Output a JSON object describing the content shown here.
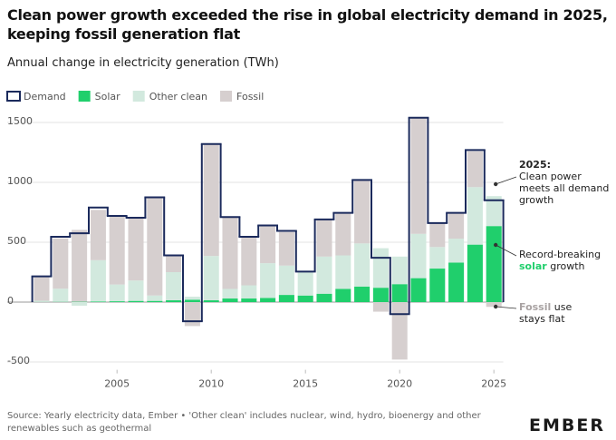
{
  "chart_data": {
    "type": "bar",
    "title": "Clean power growth exceeded the rise in global electricity demand in 2025, keeping fossil generation flat",
    "subtitle": "Annual change in electricity generation (TWh)",
    "x": [
      2001,
      2002,
      2003,
      2004,
      2005,
      2006,
      2007,
      2008,
      2009,
      2010,
      2011,
      2012,
      2013,
      2014,
      2015,
      2016,
      2017,
      2018,
      2019,
      2020,
      2021,
      2022,
      2023,
      2024,
      2025
    ],
    "xlim": [
      2000.5,
      2025.5
    ],
    "xticks": [
      2005,
      2010,
      2015,
      2020,
      2025
    ],
    "ylim": [
      -550,
      1550
    ],
    "yticks": [
      -500,
      0,
      500,
      1000,
      1500
    ],
    "grid": true,
    "series": [
      {
        "name": "Demand",
        "color": "#1b2a5c",
        "type": "step",
        "values": [
          215,
          545,
          575,
          790,
          720,
          705,
          875,
          390,
          -160,
          1320,
          710,
          545,
          640,
          595,
          255,
          690,
          745,
          1020,
          370,
          -100,
          1540,
          660,
          745,
          1270,
          850
        ]
      },
      {
        "name": "Solar",
        "color": "#20cf6c",
        "type": "stacked_bar",
        "values": [
          1,
          2,
          3,
          5,
          7,
          10,
          10,
          15,
          20,
          15,
          30,
          30,
          35,
          60,
          55,
          70,
          110,
          130,
          120,
          150,
          200,
          280,
          330,
          480,
          635
        ]
      },
      {
        "name": "Other clean",
        "color": "#d2e9de",
        "type": "stacked_bar",
        "values": [
          10,
          110,
          -30,
          345,
          140,
          170,
          45,
          235,
          25,
          370,
          80,
          110,
          290,
          245,
          195,
          310,
          280,
          360,
          330,
          230,
          370,
          180,
          200,
          480,
          250
        ]
      },
      {
        "name": "Fossil",
        "color": "#d6cfcf",
        "type": "stacked_bar",
        "values": [
          200,
          420,
          600,
          420,
          570,
          520,
          820,
          140,
          -200,
          930,
          600,
          400,
          310,
          280,
          5,
          310,
          350,
          530,
          -80,
          -480,
          970,
          200,
          220,
          300,
          -40
        ]
      }
    ],
    "annotations": [
      [
        "2025:",
        "Clean power meets all demand growth"
      ],
      [
        "Record-breaking",
        "solar",
        "growth"
      ],
      [
        "Fossil",
        "use stays flat"
      ]
    ],
    "source": "Source: Yearly electricity data, Ember • 'Other clean' includes nuclear, wind, hydro, bioenergy and other renewables such as geothermal",
    "logo": "EMBER"
  }
}
